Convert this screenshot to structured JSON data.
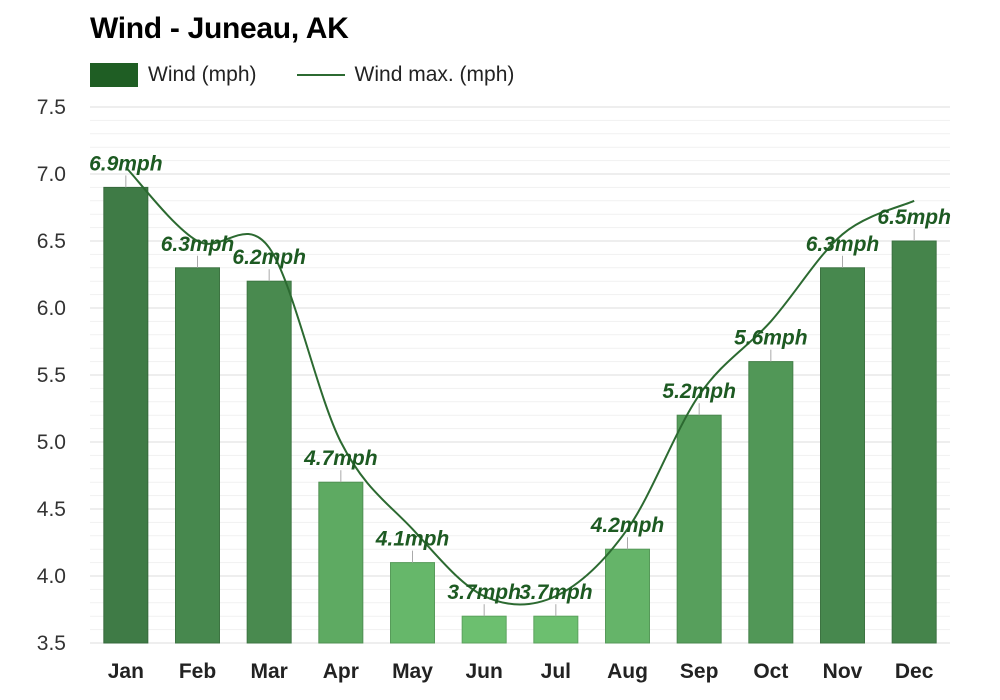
{
  "chart_data": {
    "type": "bar",
    "title": "Wind - Juneau, AK",
    "categories": [
      "Jan",
      "Feb",
      "Mar",
      "Apr",
      "May",
      "Jun",
      "Jul",
      "Aug",
      "Sep",
      "Oct",
      "Nov",
      "Dec"
    ],
    "series": [
      {
        "name": "Wind (mph)",
        "type": "bar",
        "values": [
          6.9,
          6.3,
          6.2,
          4.7,
          4.1,
          3.7,
          3.7,
          4.2,
          5.2,
          5.6,
          6.3,
          6.5
        ]
      },
      {
        "name": "Wind max. (mph)",
        "type": "line",
        "values": [
          7.05,
          6.5,
          6.45,
          5.0,
          4.35,
          3.85,
          3.85,
          4.35,
          5.35,
          5.9,
          6.55,
          6.8
        ]
      }
    ],
    "data_labels": [
      "6.9mph",
      "6.3mph",
      "6.2mph",
      "4.7mph",
      "4.1mph",
      "3.7mph",
      "3.7mph",
      "4.2mph",
      "5.2mph",
      "5.6mph",
      "6.3mph",
      "6.5mph"
    ],
    "yticks": [
      "7.5",
      "7.0",
      "6.5",
      "6.0",
      "5.5",
      "5.0",
      "4.5",
      "4.0",
      "3.5"
    ],
    "ylim": [
      3.5,
      7.5
    ],
    "xlabel": "",
    "ylabel": "",
    "grid": true,
    "legend_position": "top-left",
    "colors": {
      "legend_swatch": "#1f5e24",
      "line": "#2c6a31",
      "label": "#1d5a22",
      "bar_light": "#6cbf6f",
      "bar_dark": "#3f7b46",
      "grid": "#e6e6e6"
    }
  }
}
